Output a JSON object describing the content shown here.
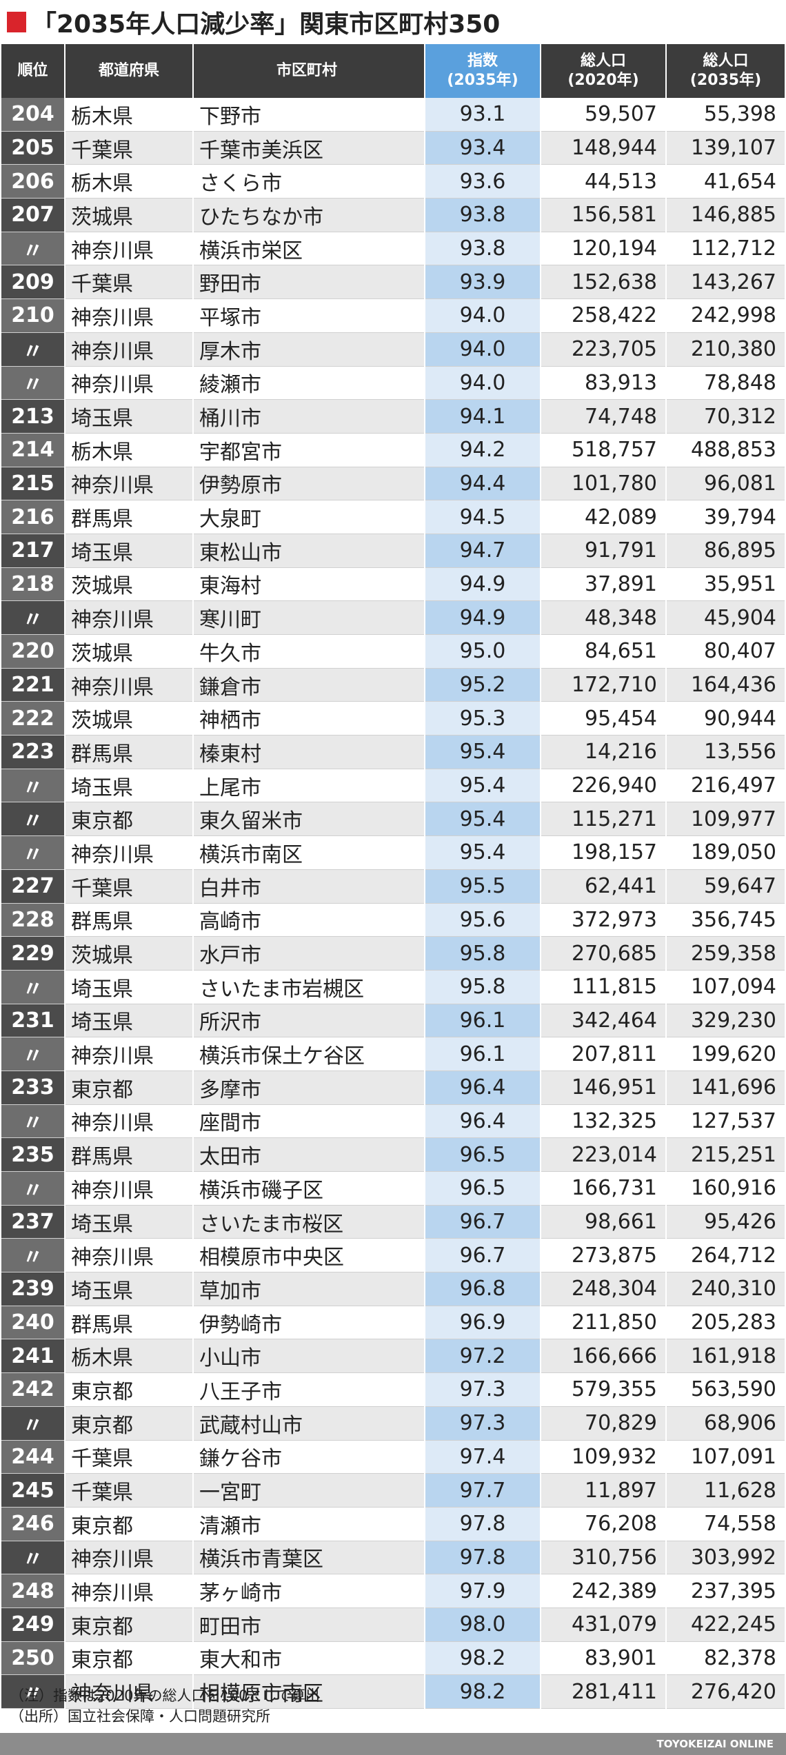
{
  "title": "「2035年人口減少率」関東市区町村350",
  "columns": {
    "rank": "順位",
    "prefecture": "都道府県",
    "municipality": "市区町村",
    "index": [
      "指数",
      "(2035年)"
    ],
    "pop2020": [
      "総人口",
      "(2020年)"
    ],
    "pop2035": [
      "総人口",
      "(2035年)"
    ]
  },
  "rows": [
    {
      "rank": "204",
      "pref": "栃木県",
      "city": "下野市",
      "index": "93.1",
      "pop2020": "59,507",
      "pop2035": "55,398"
    },
    {
      "rank": "205",
      "pref": "千葉県",
      "city": "千葉市美浜区",
      "index": "93.4",
      "pop2020": "148,944",
      "pop2035": "139,107"
    },
    {
      "rank": "206",
      "pref": "栃木県",
      "city": "さくら市",
      "index": "93.6",
      "pop2020": "44,513",
      "pop2035": "41,654"
    },
    {
      "rank": "207",
      "pref": "茨城県",
      "city": "ひたちなか市",
      "index": "93.8",
      "pop2020": "156,581",
      "pop2035": "146,885"
    },
    {
      "rank": "〃",
      "pref": "神奈川県",
      "city": "横浜市栄区",
      "index": "93.8",
      "pop2020": "120,194",
      "pop2035": "112,712"
    },
    {
      "rank": "209",
      "pref": "千葉県",
      "city": "野田市",
      "index": "93.9",
      "pop2020": "152,638",
      "pop2035": "143,267"
    },
    {
      "rank": "210",
      "pref": "神奈川県",
      "city": "平塚市",
      "index": "94.0",
      "pop2020": "258,422",
      "pop2035": "242,998"
    },
    {
      "rank": "〃",
      "pref": "神奈川県",
      "city": "厚木市",
      "index": "94.0",
      "pop2020": "223,705",
      "pop2035": "210,380"
    },
    {
      "rank": "〃",
      "pref": "神奈川県",
      "city": "綾瀬市",
      "index": "94.0",
      "pop2020": "83,913",
      "pop2035": "78,848"
    },
    {
      "rank": "213",
      "pref": "埼玉県",
      "city": "桶川市",
      "index": "94.1",
      "pop2020": "74,748",
      "pop2035": "70,312"
    },
    {
      "rank": "214",
      "pref": "栃木県",
      "city": "宇都宮市",
      "index": "94.2",
      "pop2020": "518,757",
      "pop2035": "488,853"
    },
    {
      "rank": "215",
      "pref": "神奈川県",
      "city": "伊勢原市",
      "index": "94.4",
      "pop2020": "101,780",
      "pop2035": "96,081"
    },
    {
      "rank": "216",
      "pref": "群馬県",
      "city": "大泉町",
      "index": "94.5",
      "pop2020": "42,089",
      "pop2035": "39,794"
    },
    {
      "rank": "217",
      "pref": "埼玉県",
      "city": "東松山市",
      "index": "94.7",
      "pop2020": "91,791",
      "pop2035": "86,895"
    },
    {
      "rank": "218",
      "pref": "茨城県",
      "city": "東海村",
      "index": "94.9",
      "pop2020": "37,891",
      "pop2035": "35,951"
    },
    {
      "rank": "〃",
      "pref": "神奈川県",
      "city": "寒川町",
      "index": "94.9",
      "pop2020": "48,348",
      "pop2035": "45,904"
    },
    {
      "rank": "220",
      "pref": "茨城県",
      "city": "牛久市",
      "index": "95.0",
      "pop2020": "84,651",
      "pop2035": "80,407"
    },
    {
      "rank": "221",
      "pref": "神奈川県",
      "city": "鎌倉市",
      "index": "95.2",
      "pop2020": "172,710",
      "pop2035": "164,436"
    },
    {
      "rank": "222",
      "pref": "茨城県",
      "city": "神栖市",
      "index": "95.3",
      "pop2020": "95,454",
      "pop2035": "90,944"
    },
    {
      "rank": "223",
      "pref": "群馬県",
      "city": "榛東村",
      "index": "95.4",
      "pop2020": "14,216",
      "pop2035": "13,556"
    },
    {
      "rank": "〃",
      "pref": "埼玉県",
      "city": "上尾市",
      "index": "95.4",
      "pop2020": "226,940",
      "pop2035": "216,497"
    },
    {
      "rank": "〃",
      "pref": "東京都",
      "city": "東久留米市",
      "index": "95.4",
      "pop2020": "115,271",
      "pop2035": "109,977"
    },
    {
      "rank": "〃",
      "pref": "神奈川県",
      "city": "横浜市南区",
      "index": "95.4",
      "pop2020": "198,157",
      "pop2035": "189,050"
    },
    {
      "rank": "227",
      "pref": "千葉県",
      "city": "白井市",
      "index": "95.5",
      "pop2020": "62,441",
      "pop2035": "59,647"
    },
    {
      "rank": "228",
      "pref": "群馬県",
      "city": "高崎市",
      "index": "95.6",
      "pop2020": "372,973",
      "pop2035": "356,745"
    },
    {
      "rank": "229",
      "pref": "茨城県",
      "city": "水戸市",
      "index": "95.8",
      "pop2020": "270,685",
      "pop2035": "259,358"
    },
    {
      "rank": "〃",
      "pref": "埼玉県",
      "city": "さいたま市岩槻区",
      "index": "95.8",
      "pop2020": "111,815",
      "pop2035": "107,094"
    },
    {
      "rank": "231",
      "pref": "埼玉県",
      "city": "所沢市",
      "index": "96.1",
      "pop2020": "342,464",
      "pop2035": "329,230"
    },
    {
      "rank": "〃",
      "pref": "神奈川県",
      "city": "横浜市保土ケ谷区",
      "index": "96.1",
      "pop2020": "207,811",
      "pop2035": "199,620"
    },
    {
      "rank": "233",
      "pref": "東京都",
      "city": "多摩市",
      "index": "96.4",
      "pop2020": "146,951",
      "pop2035": "141,696"
    },
    {
      "rank": "〃",
      "pref": "神奈川県",
      "city": "座間市",
      "index": "96.4",
      "pop2020": "132,325",
      "pop2035": "127,537"
    },
    {
      "rank": "235",
      "pref": "群馬県",
      "city": "太田市",
      "index": "96.5",
      "pop2020": "223,014",
      "pop2035": "215,251"
    },
    {
      "rank": "〃",
      "pref": "神奈川県",
      "city": "横浜市磯子区",
      "index": "96.5",
      "pop2020": "166,731",
      "pop2035": "160,916"
    },
    {
      "rank": "237",
      "pref": "埼玉県",
      "city": "さいたま市桜区",
      "index": "96.7",
      "pop2020": "98,661",
      "pop2035": "95,426"
    },
    {
      "rank": "〃",
      "pref": "神奈川県",
      "city": "相模原市中央区",
      "index": "96.7",
      "pop2020": "273,875",
      "pop2035": "264,712"
    },
    {
      "rank": "239",
      "pref": "埼玉県",
      "city": "草加市",
      "index": "96.8",
      "pop2020": "248,304",
      "pop2035": "240,310"
    },
    {
      "rank": "240",
      "pref": "群馬県",
      "city": "伊勢崎市",
      "index": "96.9",
      "pop2020": "211,850",
      "pop2035": "205,283"
    },
    {
      "rank": "241",
      "pref": "栃木県",
      "city": "小山市",
      "index": "97.2",
      "pop2020": "166,666",
      "pop2035": "161,918"
    },
    {
      "rank": "242",
      "pref": "東京都",
      "city": "八王子市",
      "index": "97.3",
      "pop2020": "579,355",
      "pop2035": "563,590"
    },
    {
      "rank": "〃",
      "pref": "東京都",
      "city": "武蔵村山市",
      "index": "97.3",
      "pop2020": "70,829",
      "pop2035": "68,906"
    },
    {
      "rank": "244",
      "pref": "千葉県",
      "city": "鎌ケ谷市",
      "index": "97.4",
      "pop2020": "109,932",
      "pop2035": "107,091"
    },
    {
      "rank": "245",
      "pref": "千葉県",
      "city": "一宮町",
      "index": "97.7",
      "pop2020": "11,897",
      "pop2035": "11,628"
    },
    {
      "rank": "246",
      "pref": "東京都",
      "city": "清瀬市",
      "index": "97.8",
      "pop2020": "76,208",
      "pop2035": "74,558"
    },
    {
      "rank": "〃",
      "pref": "神奈川県",
      "city": "横浜市青葉区",
      "index": "97.8",
      "pop2020": "310,756",
      "pop2035": "303,992"
    },
    {
      "rank": "248",
      "pref": "神奈川県",
      "city": "茅ヶ崎市",
      "index": "97.9",
      "pop2020": "242,389",
      "pop2035": "237,395"
    },
    {
      "rank": "249",
      "pref": "東京都",
      "city": "町田市",
      "index": "98.0",
      "pop2020": "431,079",
      "pop2035": "422,245"
    },
    {
      "rank": "250",
      "pref": "東京都",
      "city": "東大和市",
      "index": "98.2",
      "pop2020": "83,901",
      "pop2035": "82,378"
    },
    {
      "rank": "〃",
      "pref": "神奈川県",
      "city": "相模原市南区",
      "index": "98.2",
      "pop2020": "281,411",
      "pop2035": "276,420"
    }
  ],
  "notes": [
    "（注）指数は2020年の総人口を100として算出",
    "（出所）国立社会保障・人口問題研究所"
  ],
  "footer": "TOYOKEIZAI ONLINE",
  "colors": {
    "title_mark": "#d9242b",
    "header_bg": "#3c3c3c",
    "index_header_bg": "#5aa0dd",
    "index_cell_light": "#ddeaf7",
    "index_cell_dark": "#b9d5ef"
  }
}
